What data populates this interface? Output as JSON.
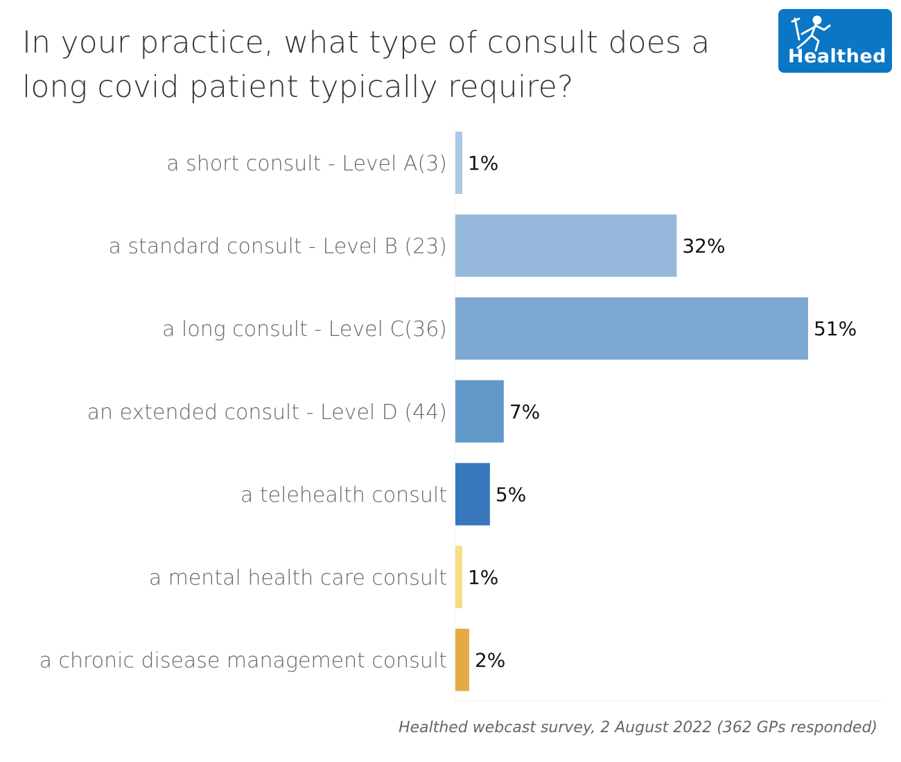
{
  "header": {
    "title": "In your practice, what type of consult does a long covid patient typically require?",
    "logo_text": "Healthed",
    "logo_color": "#0b76c5"
  },
  "footnote": "Healthed webcast survey, 2 August 2022 (362 GPs responded)",
  "chart_data": {
    "type": "bar",
    "orientation": "horizontal",
    "title": "In your practice, what type of consult does a long covid patient typically require?",
    "xlabel": "",
    "ylabel": "",
    "xlim": [
      0,
      62
    ],
    "grid": false,
    "categories": [
      "a short consult - Level A(3)",
      "a standard consult - Level B (23)",
      "a long consult - Level C(36)",
      "an extended consult - Level D (44)",
      "a telehealth consult",
      "a mental health care consult",
      "a chronic disease management consult"
    ],
    "values": [
      1,
      32,
      51,
      7,
      5,
      1,
      2
    ],
    "value_labels": [
      "1%",
      "32%",
      "51%",
      "7%",
      "5%",
      "1%",
      "2%"
    ],
    "colors": [
      "#abc9e4",
      "#95b8db",
      "#7ca8d2",
      "#6298c9",
      "#3777bb",
      "#f8dc85",
      "#e4aa45"
    ],
    "source": "Healthed webcast survey, 2 August 2022 (362 GPs responded)"
  }
}
